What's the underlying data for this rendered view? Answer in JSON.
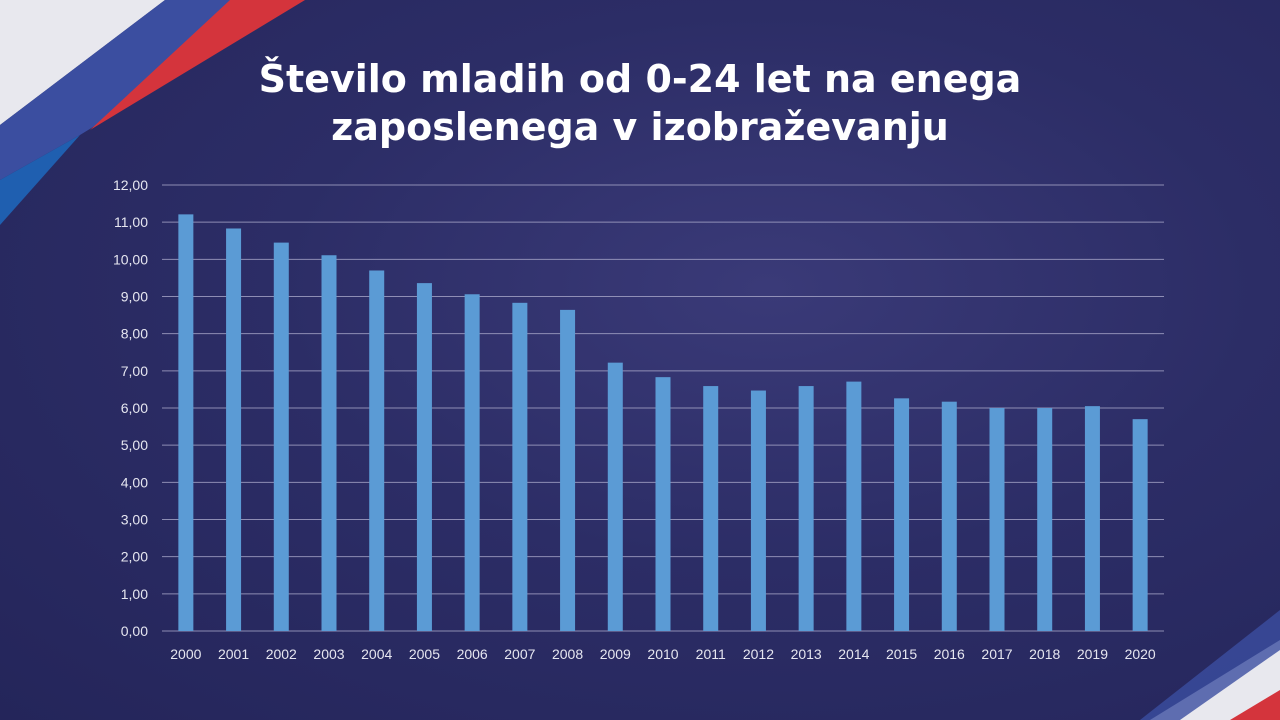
{
  "chart_data": {
    "type": "bar",
    "title": [
      "Število mladih od 0-24 let na enega",
      "zaposlenega v izobraževanju"
    ],
    "xlabel": "",
    "ylabel": "",
    "categories": [
      "2000",
      "2001",
      "2002",
      "2003",
      "2004",
      "2005",
      "2006",
      "2007",
      "2008",
      "2009",
      "2010",
      "2011",
      "2012",
      "2013",
      "2014",
      "2015",
      "2016",
      "2017",
      "2018",
      "2019",
      "2020"
    ],
    "values": [
      11.21,
      10.83,
      10.45,
      10.11,
      9.7,
      9.36,
      9.06,
      8.83,
      8.64,
      7.22,
      6.83,
      6.59,
      6.47,
      6.59,
      6.71,
      6.26,
      6.17,
      6.0,
      6.0,
      6.05,
      5.7
    ],
    "ylim": [
      0,
      12
    ],
    "yticks": [
      "0,00",
      "1,00",
      "2,00",
      "3,00",
      "4,00",
      "5,00",
      "6,00",
      "7,00",
      "8,00",
      "9,00",
      "10,00",
      "11,00",
      "12,00"
    ],
    "grid": true,
    "bar_color": "#5b9bd5"
  }
}
